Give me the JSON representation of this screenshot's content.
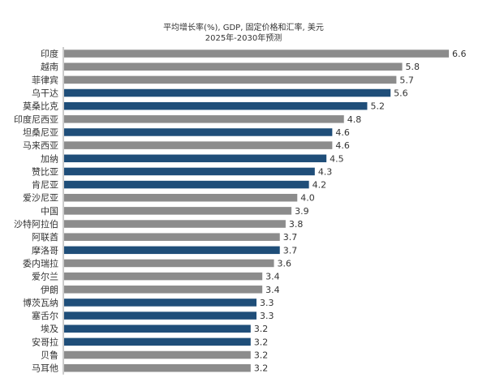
{
  "chart_data": {
    "type": "bar",
    "orientation": "horizontal",
    "title": "平均增长率(%), GDP, 固定价格和汇率, 美元",
    "subtitle": "2025年-2030年预测",
    "xlabel": "",
    "ylabel": "",
    "xlim": [
      0,
      6.6
    ],
    "grid": false,
    "legend": "none",
    "colors": {
      "blue": "#1f4e79",
      "gray": "#8c8c8c",
      "axis": "#999999",
      "text": "#333333"
    },
    "categories": [
      "印度",
      "越南",
      "菲律宾",
      "乌干达",
      "莫桑比克",
      "印度尼西亚",
      "坦桑尼亚",
      "马来西亚",
      "加纳",
      "赞比亚",
      "肯尼亚",
      "爱沙尼亚",
      "中国",
      "沙特阿拉伯",
      "阿联酋",
      "摩洛哥",
      "委内瑞拉",
      "爱尔兰",
      "伊朗",
      "博茨瓦纳",
      "塞舌尔",
      "埃及",
      "安哥拉",
      "贝鲁",
      "马耳他"
    ],
    "values": [
      6.6,
      5.8,
      5.7,
      5.6,
      5.2,
      4.8,
      4.6,
      4.6,
      4.5,
      4.3,
      4.2,
      4.0,
      3.9,
      3.8,
      3.7,
      3.7,
      3.6,
      3.4,
      3.4,
      3.3,
      3.3,
      3.2,
      3.2,
      3.2,
      3.2
    ],
    "value_labels": [
      "6.6",
      "5.8",
      "5.7",
      "5.6",
      "5.2",
      "4.8",
      "4.6",
      "4.6",
      "4.5",
      "4.3",
      "4.2",
      "4.0",
      "3.9",
      "3.8",
      "3.7",
      "3.7",
      "3.6",
      "3.4",
      "3.4",
      "3.3",
      "3.3",
      "3.2",
      "3.2",
      "3.2",
      "3.2"
    ],
    "bar_colors": [
      "gray",
      "gray",
      "gray",
      "blue",
      "blue",
      "gray",
      "blue",
      "gray",
      "blue",
      "blue",
      "blue",
      "gray",
      "gray",
      "gray",
      "gray",
      "blue",
      "gray",
      "gray",
      "gray",
      "blue",
      "blue",
      "blue",
      "blue",
      "gray",
      "gray"
    ]
  }
}
